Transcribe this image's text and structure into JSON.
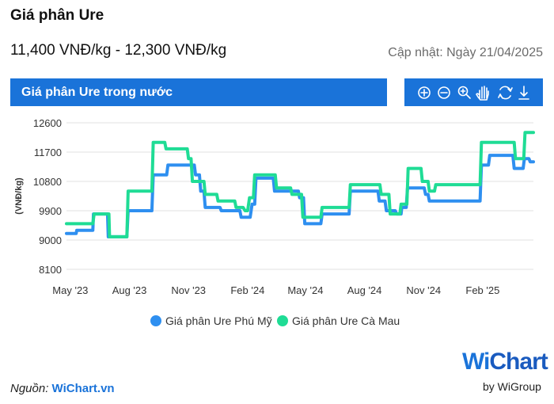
{
  "header": {
    "title": "Giá phân Ure",
    "price_range": "11,400 VNĐ/kg - 12,300 VNĐ/kg",
    "updated": "Cập nhật: Ngày 21/04/2025"
  },
  "panel": {
    "banner": "Giá phân Ure trong nước"
  },
  "toolbar": {
    "icons": [
      "zoom-in-icon",
      "zoom-out-icon",
      "zoom-select-icon",
      "pan-hand-icon",
      "reset-icon",
      "download-icon"
    ]
  },
  "colors": {
    "brand": "#1a73d9",
    "phu_my": "#2e8ff0",
    "ca_mau": "#1fdc95",
    "grid": "#e2e2e2"
  },
  "source": {
    "prefix": "Nguồn: ",
    "name": "WiChart.vn"
  },
  "logo": {
    "w": "Wi",
    "chart": "Chart",
    "by": "by WiGroup"
  },
  "chart_data": {
    "type": "line",
    "ylabel": "(VNĐ/kg)",
    "ylim": [
      8100,
      12600
    ],
    "yticks": [
      8100,
      9000,
      9900,
      10800,
      11700,
      12600
    ],
    "xlim": [
      "2023-04-25",
      "2025-04-21"
    ],
    "xticks": [
      {
        "date": "2023-05-01",
        "label": "May '23"
      },
      {
        "date": "2023-08-01",
        "label": "Aug '23"
      },
      {
        "date": "2023-11-01",
        "label": "Nov '23"
      },
      {
        "date": "2024-02-01",
        "label": "Feb '24"
      },
      {
        "date": "2024-05-01",
        "label": "May '24"
      },
      {
        "date": "2024-08-01",
        "label": "Aug '24"
      },
      {
        "date": "2024-11-01",
        "label": "Nov '24"
      },
      {
        "date": "2025-02-01",
        "label": "Feb '25"
      }
    ],
    "grid": true,
    "legend": "bottom-center",
    "series": [
      {
        "name": "Giá phân Ure Phú Mỹ",
        "color": "#2e8ff0",
        "points": [
          [
            "2023-04-25",
            9200
          ],
          [
            "2023-05-10",
            9200
          ],
          [
            "2023-05-11",
            9300
          ],
          [
            "2023-06-05",
            9300
          ],
          [
            "2023-06-06",
            9800
          ],
          [
            "2023-06-28",
            9800
          ],
          [
            "2023-06-29",
            9100
          ],
          [
            "2023-07-28",
            9100
          ],
          [
            "2023-07-30",
            9900
          ],
          [
            "2023-09-05",
            9900
          ],
          [
            "2023-09-07",
            11000
          ],
          [
            "2023-09-28",
            11000
          ],
          [
            "2023-09-30",
            11300
          ],
          [
            "2023-11-10",
            11300
          ],
          [
            "2023-11-12",
            11000
          ],
          [
            "2023-11-18",
            11000
          ],
          [
            "2023-11-20",
            10500
          ],
          [
            "2023-11-25",
            10500
          ],
          [
            "2023-11-27",
            10000
          ],
          [
            "2023-12-20",
            10000
          ],
          [
            "2023-12-22",
            9900
          ],
          [
            "2024-01-20",
            9900
          ],
          [
            "2024-01-22",
            9700
          ],
          [
            "2024-02-05",
            9700
          ],
          [
            "2024-02-08",
            10100
          ],
          [
            "2024-02-12",
            10100
          ],
          [
            "2024-02-14",
            10900
          ],
          [
            "2024-03-12",
            10900
          ],
          [
            "2024-03-14",
            10500
          ],
          [
            "2024-04-20",
            10500
          ],
          [
            "2024-04-22",
            10300
          ],
          [
            "2024-04-28",
            10300
          ],
          [
            "2024-04-30",
            9500
          ],
          [
            "2024-05-25",
            9500
          ],
          [
            "2024-05-27",
            9800
          ],
          [
            "2024-07-08",
            9800
          ],
          [
            "2024-07-10",
            10500
          ],
          [
            "2024-08-22",
            10500
          ],
          [
            "2024-08-24",
            10200
          ],
          [
            "2024-09-02",
            10200
          ],
          [
            "2024-09-04",
            9900
          ],
          [
            "2024-09-18",
            9900
          ],
          [
            "2024-09-20",
            9800
          ],
          [
            "2024-09-27",
            9800
          ],
          [
            "2024-09-28",
            10000
          ],
          [
            "2024-10-05",
            10000
          ],
          [
            "2024-10-07",
            10600
          ],
          [
            "2024-11-02",
            10600
          ],
          [
            "2024-11-04",
            10400
          ],
          [
            "2024-11-08",
            10400
          ],
          [
            "2024-11-10",
            10200
          ],
          [
            "2025-01-28",
            10200
          ],
          [
            "2025-01-30",
            11300
          ],
          [
            "2025-02-10",
            11300
          ],
          [
            "2025-02-12",
            11600
          ],
          [
            "2025-03-20",
            11600
          ],
          [
            "2025-03-22",
            11200
          ],
          [
            "2025-04-05",
            11200
          ],
          [
            "2025-04-07",
            11500
          ],
          [
            "2025-04-14",
            11500
          ],
          [
            "2025-04-16",
            11400
          ],
          [
            "2025-04-21",
            11400
          ]
        ]
      },
      {
        "name": "Giá phân Ure Cà Mau",
        "color": "#1fdc95",
        "points": [
          [
            "2023-04-25",
            9500
          ],
          [
            "2023-06-05",
            9500
          ],
          [
            "2023-06-07",
            9800
          ],
          [
            "2023-06-30",
            9800
          ],
          [
            "2023-07-01",
            9100
          ],
          [
            "2023-07-28",
            9100
          ],
          [
            "2023-07-30",
            10500
          ],
          [
            "2023-09-05",
            10500
          ],
          [
            "2023-09-07",
            12000
          ],
          [
            "2023-09-25",
            12000
          ],
          [
            "2023-09-27",
            11800
          ],
          [
            "2023-10-30",
            11800
          ],
          [
            "2023-11-01",
            11500
          ],
          [
            "2023-11-05",
            11500
          ],
          [
            "2023-11-07",
            10800
          ],
          [
            "2023-11-25",
            10800
          ],
          [
            "2023-11-27",
            10400
          ],
          [
            "2023-12-15",
            10400
          ],
          [
            "2023-12-17",
            10200
          ],
          [
            "2024-01-12",
            10200
          ],
          [
            "2024-01-14",
            10000
          ],
          [
            "2024-01-25",
            10000
          ],
          [
            "2024-01-28",
            9900
          ],
          [
            "2024-02-01",
            9900
          ],
          [
            "2024-02-04",
            10300
          ],
          [
            "2024-02-10",
            10300
          ],
          [
            "2024-02-12",
            11000
          ],
          [
            "2024-03-15",
            11000
          ],
          [
            "2024-03-17",
            10600
          ],
          [
            "2024-04-08",
            10600
          ],
          [
            "2024-04-10",
            10400
          ],
          [
            "2024-04-25",
            10400
          ],
          [
            "2024-04-27",
            9700
          ],
          [
            "2024-05-25",
            9700
          ],
          [
            "2024-05-27",
            10000
          ],
          [
            "2024-07-08",
            10000
          ],
          [
            "2024-07-10",
            10700
          ],
          [
            "2024-08-25",
            10700
          ],
          [
            "2024-08-27",
            10400
          ],
          [
            "2024-09-08",
            10400
          ],
          [
            "2024-09-10",
            9800
          ],
          [
            "2024-09-25",
            9800
          ],
          [
            "2024-09-27",
            10100
          ],
          [
            "2024-10-06",
            10100
          ],
          [
            "2024-10-08",
            11200
          ],
          [
            "2024-10-28",
            11200
          ],
          [
            "2024-10-30",
            10800
          ],
          [
            "2024-11-08",
            10800
          ],
          [
            "2024-11-10",
            10500
          ],
          [
            "2024-11-18",
            10500
          ],
          [
            "2024-11-20",
            10700
          ],
          [
            "2025-01-28",
            10700
          ],
          [
            "2025-01-30",
            12000
          ],
          [
            "2025-03-22",
            12000
          ],
          [
            "2025-03-24",
            11500
          ],
          [
            "2025-04-06",
            11500
          ],
          [
            "2025-04-08",
            12300
          ],
          [
            "2025-04-21",
            12300
          ]
        ]
      }
    ]
  }
}
